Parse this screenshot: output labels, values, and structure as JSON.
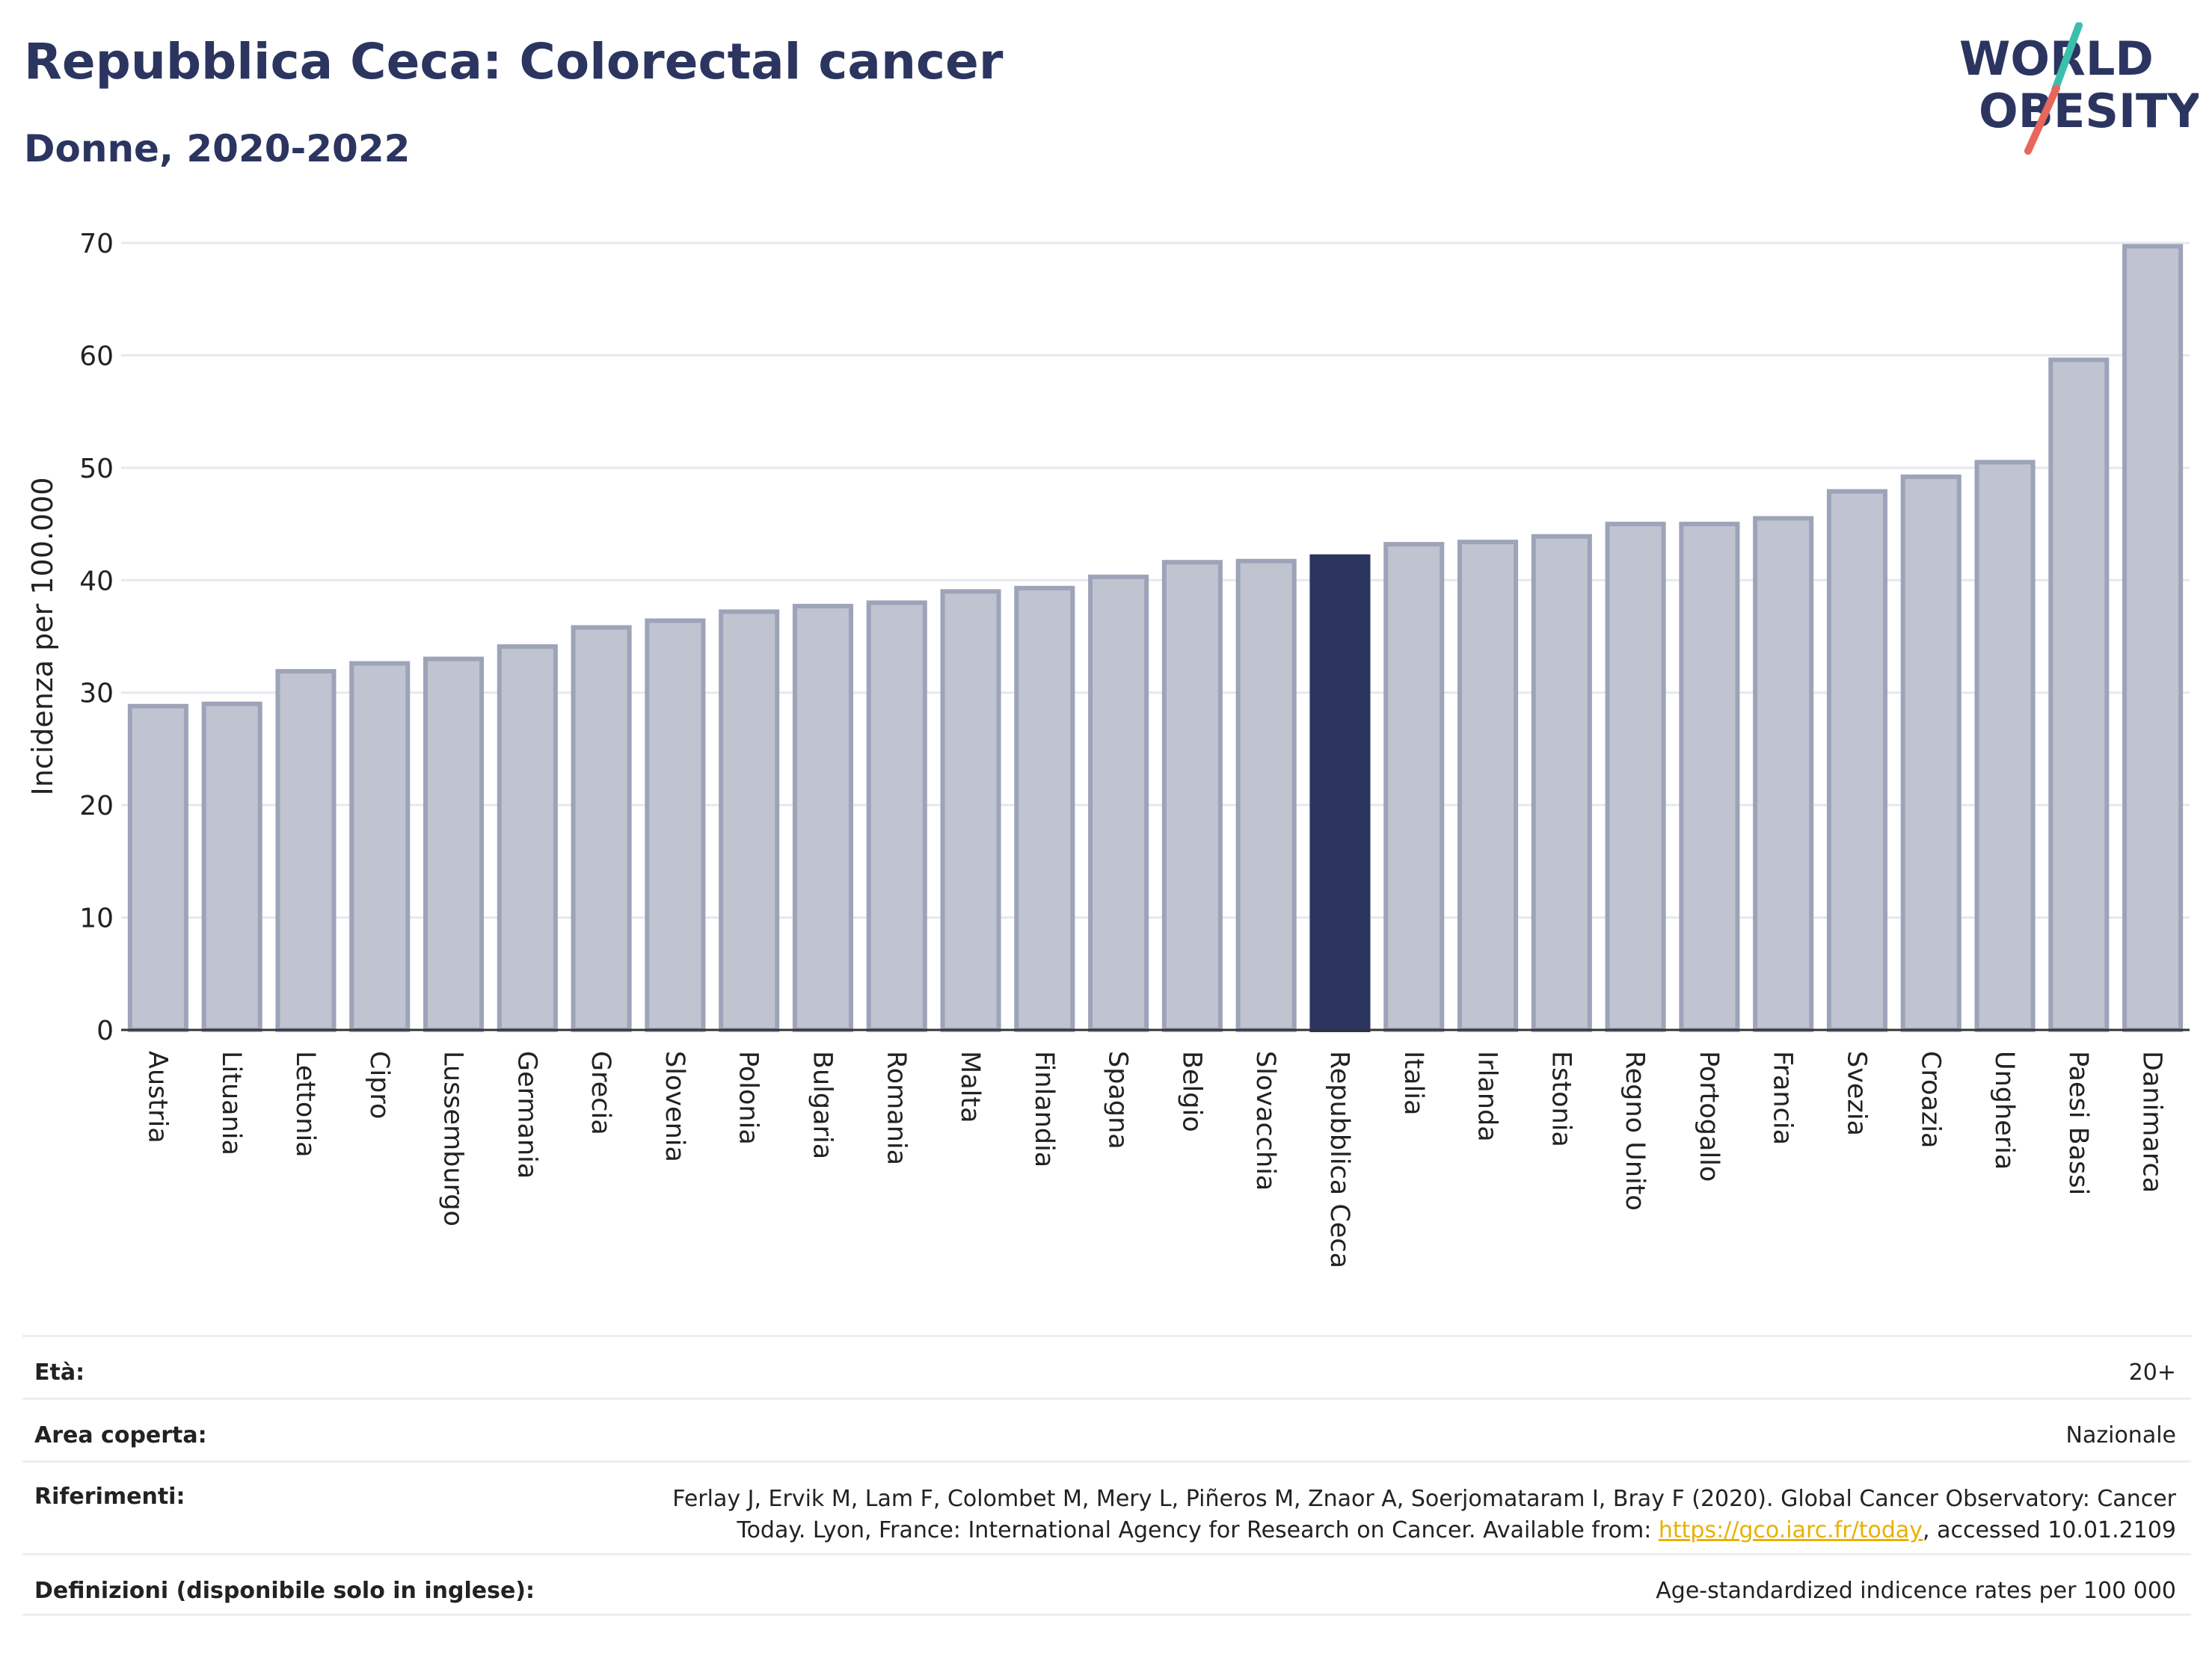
{
  "header": {
    "title": "Repubblica Ceca: Colorectal cancer",
    "subtitle": "Donne, 2020-2022"
  },
  "logo": {
    "line1": "WORLD",
    "line2": "OBESITY",
    "colors": {
      "text": "#2b3560",
      "accent_teal": "#3bbfad",
      "accent_red": "#e8675a"
    }
  },
  "chart_data": {
    "type": "bar",
    "ylabel": "Incidenza per 100.000",
    "xlabel": "",
    "ylim": [
      0,
      70
    ],
    "yticks": [
      0,
      10,
      20,
      30,
      40,
      50,
      60,
      70
    ],
    "grid": true,
    "categories": [
      "Austria",
      "Lituania",
      "Lettonia",
      "Cipro",
      "Lussemburgo",
      "Germania",
      "Grecia",
      "Slovenia",
      "Polonia",
      "Bulgaria",
      "Romania",
      "Malta",
      "Finlandia",
      "Spagna",
      "Belgio",
      "Slovacchia",
      "Repubblica Ceca",
      "Italia",
      "Irlanda",
      "Estonia",
      "Regno Unito",
      "Portogallo",
      "Francia",
      "Svezia",
      "Croazia",
      "Ungheria",
      "Paesi Bassi",
      "Danimarca"
    ],
    "values": [
      28.8,
      29.0,
      31.9,
      32.6,
      33.0,
      34.1,
      35.8,
      36.4,
      37.2,
      37.7,
      38.0,
      39.0,
      39.3,
      40.3,
      41.6,
      41.7,
      42.1,
      43.2,
      43.4,
      43.9,
      45.0,
      45.0,
      45.5,
      47.9,
      49.2,
      50.5,
      59.6,
      69.7
    ],
    "highlight": "Repubblica Ceca",
    "colors": {
      "bar": "#c0c4d0",
      "bar_edge": "#9da3b8",
      "highlight": "#2b3560"
    }
  },
  "meta": {
    "eta_label": "Età:",
    "eta_value": "20+",
    "area_label": "Area coperta:",
    "area_value": "Nazionale",
    "ref_label": "Riferimenti:",
    "ref_text_1": "Ferlay J, Ervik M, Lam F, Colombet M, Mery L, Piñeros M, Znaor A, Soerjomataram I, Bray F (2020). Global Cancer Observatory: Cancer Today. Lyon, France: International Agency for Research on Cancer. Available from: ",
    "ref_link": "https://gco.iarc.fr/today",
    "ref_text_2": ", accessed 10.01.2109",
    "def_label": "Definizioni (disponibile solo in inglese):",
    "def_value": "Age-standardized indicence rates per 100 000"
  }
}
